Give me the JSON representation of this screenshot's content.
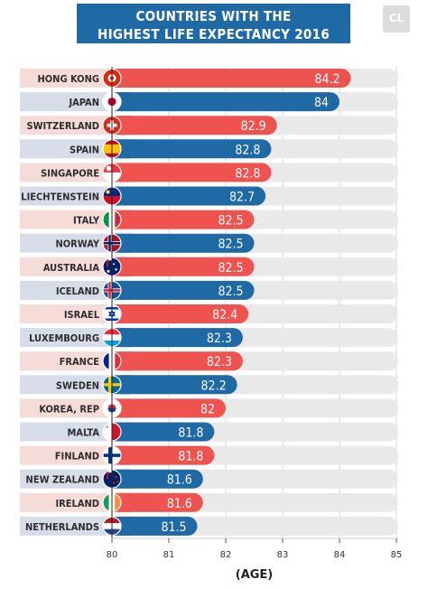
{
  "header": {
    "title_line1": "COUNTRIES WITH THE",
    "title_line2": "HIGHEST LIFE EXPECTANCY 2016",
    "logo_text": "CL"
  },
  "colors": {
    "red": "#ef5350",
    "blue": "#1f6aa5",
    "red_label_bg": "#f5dcd8",
    "blue_label_bg": "#d7dde8",
    "track": "#e9e9e9"
  },
  "chart_data": {
    "type": "bar",
    "orientation": "horizontal",
    "categories": [
      "HONG KONG",
      "JAPAN",
      "SWITZERLAND",
      "SPAIN",
      "SINGAPORE",
      "LIECHTENSTEIN",
      "ITALY",
      "NORWAY",
      "AUSTRALIA",
      "ICELAND",
      "ISRAEL",
      "LUXEMBOURG",
      "FRANCE",
      "SWEDEN",
      "KOREA, REP",
      "MALTA",
      "FINLAND",
      "NEW ZEALAND",
      "IRELAND",
      "NETHERLANDS"
    ],
    "values": [
      84.2,
      84,
      82.9,
      82.8,
      82.8,
      82.7,
      82.5,
      82.5,
      82.5,
      82.5,
      82.4,
      82.3,
      82.3,
      82.2,
      82,
      81.8,
      81.8,
      81.6,
      81.6,
      81.5
    ],
    "value_labels": [
      "84.2",
      "84",
      "82.9",
      "82.8",
      "82.8",
      "82.7",
      "82.5",
      "82.5",
      "82.5",
      "82.5",
      "82.4",
      "82.3",
      "82.3",
      "82.2",
      "82",
      "81.8",
      "81.8",
      "81.6",
      "81.6",
      "81.5"
    ],
    "bar_colors": [
      "red",
      "blue",
      "red",
      "blue",
      "red",
      "blue",
      "red",
      "blue",
      "red",
      "blue",
      "red",
      "blue",
      "red",
      "blue",
      "red",
      "blue",
      "red",
      "blue",
      "red",
      "blue"
    ],
    "flag_icons": [
      "hong-kong-flag-icon",
      "japan-flag-icon",
      "switzerland-flag-icon",
      "spain-flag-icon",
      "singapore-flag-icon",
      "liechtenstein-flag-icon",
      "italy-flag-icon",
      "norway-flag-icon",
      "australia-flag-icon",
      "iceland-flag-icon",
      "israel-flag-icon",
      "luxembourg-flag-icon",
      "france-flag-icon",
      "sweden-flag-icon",
      "korea-flag-icon",
      "malta-flag-icon",
      "finland-flag-icon",
      "new-zealand-flag-icon",
      "ireland-flag-icon",
      "netherlands-flag-icon"
    ],
    "xlim": [
      80,
      85
    ],
    "x_ticks": [
      80,
      81,
      82,
      83,
      84,
      85
    ],
    "xlabel": "(AGE)",
    "grid": true
  }
}
